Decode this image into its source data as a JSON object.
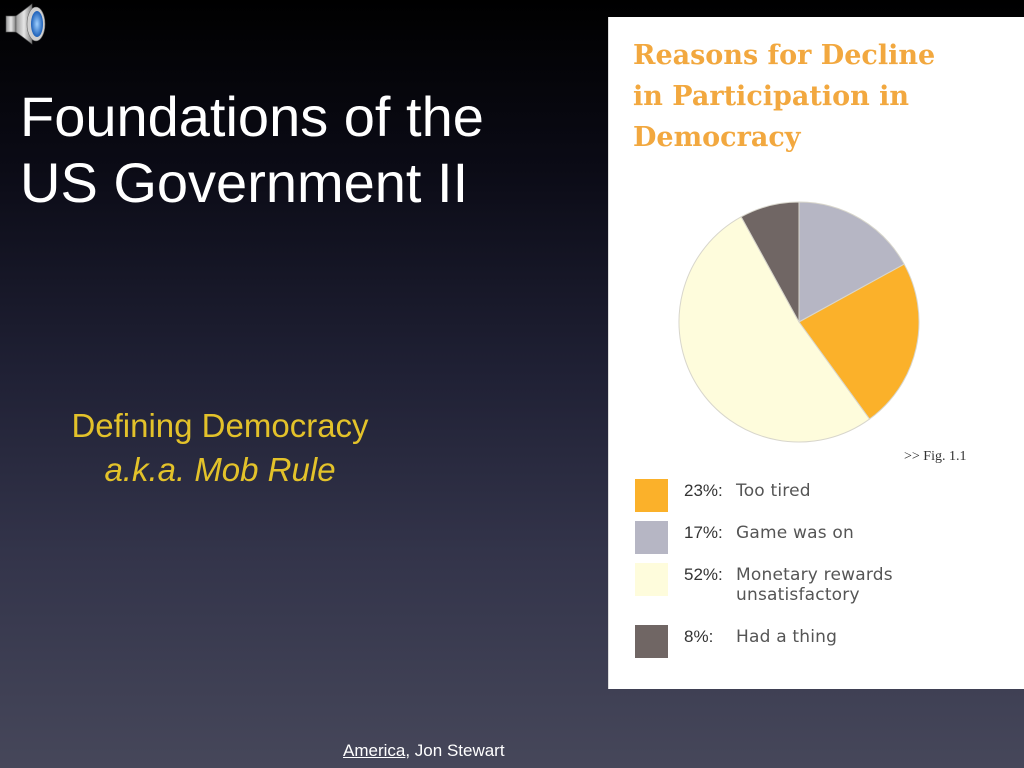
{
  "slide": {
    "title_line1": "Foundations of the",
    "title_line2": "US Government II",
    "subtitle_line1": "Defining Democracy",
    "subtitle_line2": "a.k.a. Mob Rule",
    "citation_link": "America",
    "citation_rest": ", Jon Stewart",
    "icons": {
      "audio": "speaker-icon"
    }
  },
  "chart_data": {
    "type": "pie",
    "title": "Reasons for Decline in Participation in Democracy",
    "title_line1": "Reasons for Decline",
    "title_line2": "in Participation in",
    "title_line3": "Democracy",
    "figure_label": ">> Fig. 1.1",
    "slices": [
      {
        "label": "23%:",
        "value": 23,
        "description": "Too tired",
        "color": "#fbb12a"
      },
      {
        "label": "17%:",
        "value": 17,
        "description": "Game was on",
        "color": "#b6b6c4"
      },
      {
        "label": "52%:",
        "value": 52,
        "description": "Monetary rewards unsatisfactory",
        "description_line1": "Monetary rewards",
        "description_line2": "unsatisfactory",
        "color": "#fefcdc"
      },
      {
        "label": "8%:",
        "value": 8,
        "description": "Had a thing",
        "color": "#706664"
      }
    ],
    "title_color": "#f2a83f"
  }
}
